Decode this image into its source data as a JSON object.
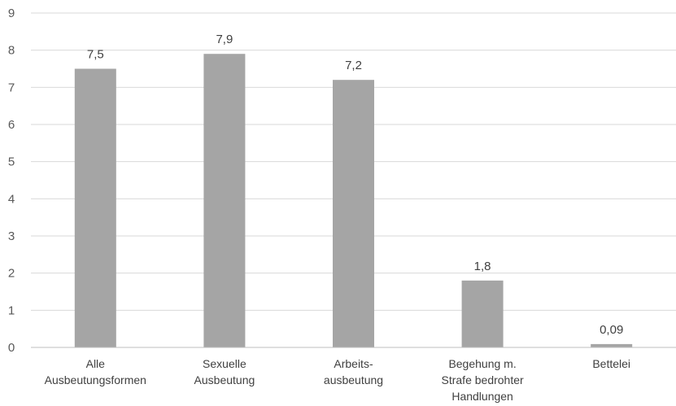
{
  "chart_data": {
    "type": "bar",
    "title": "",
    "xlabel": "",
    "ylabel": "",
    "categories": [
      [
        "Alle",
        "Ausbeutungsformen"
      ],
      [
        "Sexuelle",
        "Ausbeutung"
      ],
      [
        "Arbeits-",
        "ausbeutung"
      ],
      [
        "Begehung m.",
        "Strafe bedrohter",
        "Handlungen"
      ],
      [
        "Bettelei"
      ]
    ],
    "values": [
      7.5,
      7.9,
      7.2,
      1.8,
      0.09
    ],
    "data_labels": [
      "7,5",
      "7,9",
      "7,2",
      "1,8",
      "0,09"
    ],
    "ylim": [
      0,
      9
    ],
    "yticks": [
      0,
      1,
      2,
      3,
      4,
      5,
      6,
      7,
      8,
      9
    ],
    "grid": true,
    "legend": "none",
    "colors": {
      "bar": "#a5a5a5",
      "grid": "#d9d9d9",
      "axis": "#bfbfbf"
    }
  }
}
